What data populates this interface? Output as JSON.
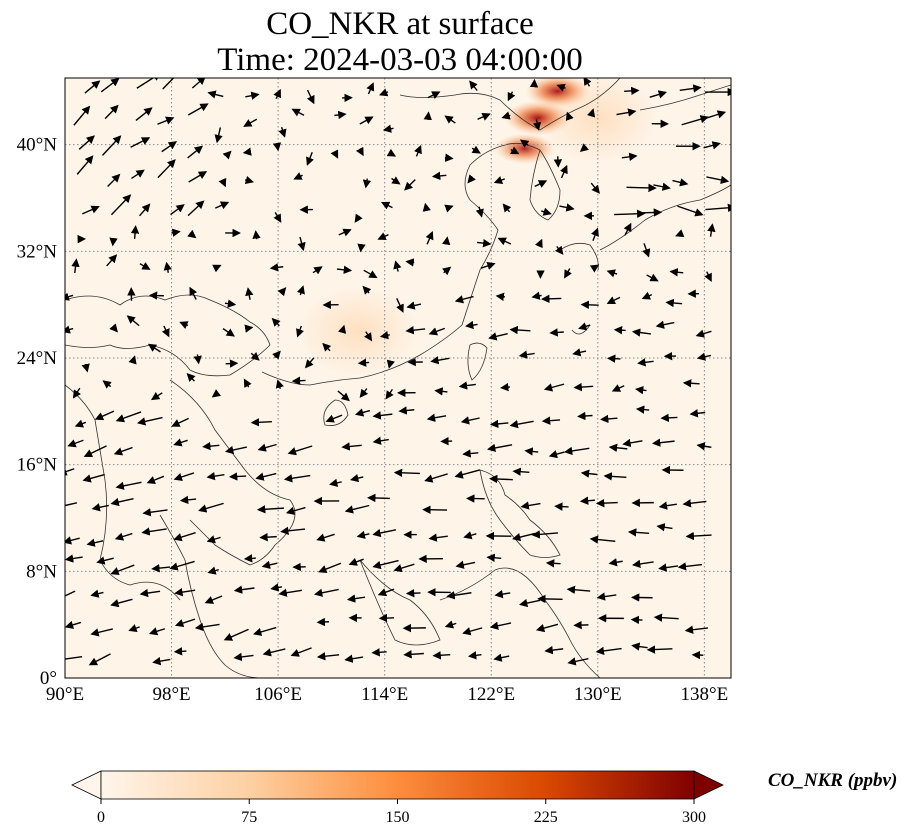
{
  "title": {
    "line1": "CO_NKR at surface",
    "line2": "Time: 2024-03-03 04:00:00"
  },
  "map": {
    "lon_range": [
      90,
      140
    ],
    "lat_range": [
      0,
      45
    ],
    "gridlines": "dotted",
    "lon_ticks": [
      "90°E",
      "98°E",
      "106°E",
      "114°E",
      "122°E",
      "130°E",
      "138°E"
    ],
    "lat_ticks": [
      "0°",
      "8°N",
      "16°N",
      "24°N",
      "32°N",
      "40°N"
    ],
    "hotspots": [
      {
        "lon": 127.0,
        "lat": 44.0,
        "value": 260
      },
      {
        "lon": 125.5,
        "lat": 42.0,
        "value": 290
      },
      {
        "lon": 124.5,
        "lat": 39.7,
        "value": 210
      },
      {
        "lon": 130.0,
        "lat": 42.0,
        "value": 60
      },
      {
        "lon": 112.0,
        "lat": 26.0,
        "value": 35
      }
    ]
  },
  "colorbar": {
    "label": "CO_NKR (ppbv)",
    "min": 0,
    "max": 300,
    "ticks": [
      "0",
      "75",
      "150",
      "225",
      "300"
    ],
    "extend": "both",
    "colormap": [
      "#fff5eb",
      "#fdd0a2",
      "#fd8d3c",
      "#d94801",
      "#7f0000"
    ]
  }
}
